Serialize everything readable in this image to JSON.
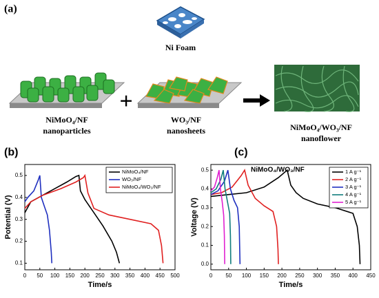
{
  "schematic": {
    "panel": "(a)",
    "foam": "Ni Foam",
    "left_name": "NiMoO₄/NF",
    "left_kind": "nanoparticles",
    "mid_name": "WO₃/NF",
    "mid_kind": "nanosheets",
    "right_name": "NiMoO₄/WO₃/NF",
    "right_kind": "nanoflower"
  },
  "chart_data": [
    {
      "type": "line",
      "panel": "(b)",
      "xlabel": "Time/s",
      "ylabel": "Potential (V)",
      "xlim": [
        0,
        500
      ],
      "ylim": [
        0.07,
        0.55
      ],
      "xticks": [
        0,
        50,
        100,
        150,
        200,
        250,
        300,
        350,
        400,
        450,
        500
      ],
      "yticks": [
        0.1,
        0.2,
        0.3,
        0.4,
        0.5
      ],
      "legend": "upper right",
      "series": [
        {
          "name": "NiMoO₄/NF",
          "color": "#000000",
          "x": [
            0,
            20,
            60,
            100,
            140,
            170,
            180,
            185,
            200,
            230,
            260,
            290,
            305,
            315
          ],
          "values": [
            0.33,
            0.38,
            0.41,
            0.44,
            0.47,
            0.495,
            0.5,
            0.43,
            0.39,
            0.33,
            0.27,
            0.2,
            0.15,
            0.1
          ]
        },
        {
          "name": "WO₃/NF",
          "color": "#1f2fbf",
          "x": [
            0,
            10,
            30,
            45,
            50,
            55,
            65,
            75,
            82,
            88,
            90
          ],
          "values": [
            0.38,
            0.4,
            0.43,
            0.48,
            0.5,
            0.4,
            0.36,
            0.32,
            0.25,
            0.15,
            0.1
          ]
        },
        {
          "name": "NiMoO₄/WO₃/NF",
          "color": "#e02020",
          "x": [
            0,
            20,
            60,
            120,
            170,
            195,
            200,
            210,
            230,
            280,
            350,
            420,
            445,
            455,
            460
          ],
          "values": [
            0.35,
            0.38,
            0.41,
            0.44,
            0.47,
            0.49,
            0.5,
            0.42,
            0.35,
            0.32,
            0.3,
            0.28,
            0.25,
            0.18,
            0.1
          ]
        }
      ]
    },
    {
      "type": "line",
      "panel": "(c)",
      "xlabel": "Time/s",
      "ylabel": "Voltage (V)",
      "annotation": "NiMoO₄/WO₃/NF",
      "xlim": [
        0,
        450
      ],
      "ylim": [
        -0.03,
        0.53
      ],
      "xticks": [
        0,
        50,
        100,
        150,
        200,
        250,
        300,
        350,
        400,
        450
      ],
      "yticks": [
        {
          "value": 0,
          "label": "0.0"
        },
        0.1,
        0.2,
        0.3,
        0.4,
        0.5
      ],
      "legend": "upper right",
      "series": [
        {
          "name": "1 A g⁻¹",
          "color": "#000000",
          "x": [
            0,
            50,
            100,
            150,
            190,
            215,
            225,
            240,
            260,
            300,
            350,
            400,
            412,
            418,
            420
          ],
          "values": [
            0.36,
            0.37,
            0.38,
            0.41,
            0.46,
            0.5,
            0.42,
            0.38,
            0.35,
            0.32,
            0.3,
            0.27,
            0.2,
            0.1,
            0
          ]
        },
        {
          "name": "2 A g⁻¹",
          "color": "#e02020",
          "x": [
            0,
            30,
            60,
            85,
            95,
            105,
            125,
            150,
            175,
            185,
            189,
            190
          ],
          "values": [
            0.37,
            0.38,
            0.41,
            0.47,
            0.5,
            0.42,
            0.35,
            0.31,
            0.28,
            0.2,
            0.08,
            0
          ]
        },
        {
          "name": "3 A g⁻¹",
          "color": "#1f2fbf",
          "x": [
            0,
            20,
            38,
            48,
            55,
            65,
            75,
            80,
            82
          ],
          "values": [
            0.37,
            0.39,
            0.44,
            0.5,
            0.4,
            0.34,
            0.3,
            0.2,
            0
          ]
        },
        {
          "name": "4 A g⁻¹",
          "color": "#0f7c7c",
          "x": [
            0,
            15,
            28,
            35,
            40,
            47,
            53,
            55,
            56
          ],
          "values": [
            0.38,
            0.4,
            0.45,
            0.5,
            0.4,
            0.33,
            0.27,
            0.15,
            0
          ]
        },
        {
          "name": "5 A g⁻¹",
          "color": "#e020d0",
          "x": [
            0,
            10,
            18,
            23,
            27,
            32,
            36,
            38,
            39
          ],
          "values": [
            0.39,
            0.41,
            0.46,
            0.5,
            0.4,
            0.33,
            0.26,
            0.15,
            0
          ]
        }
      ]
    }
  ]
}
